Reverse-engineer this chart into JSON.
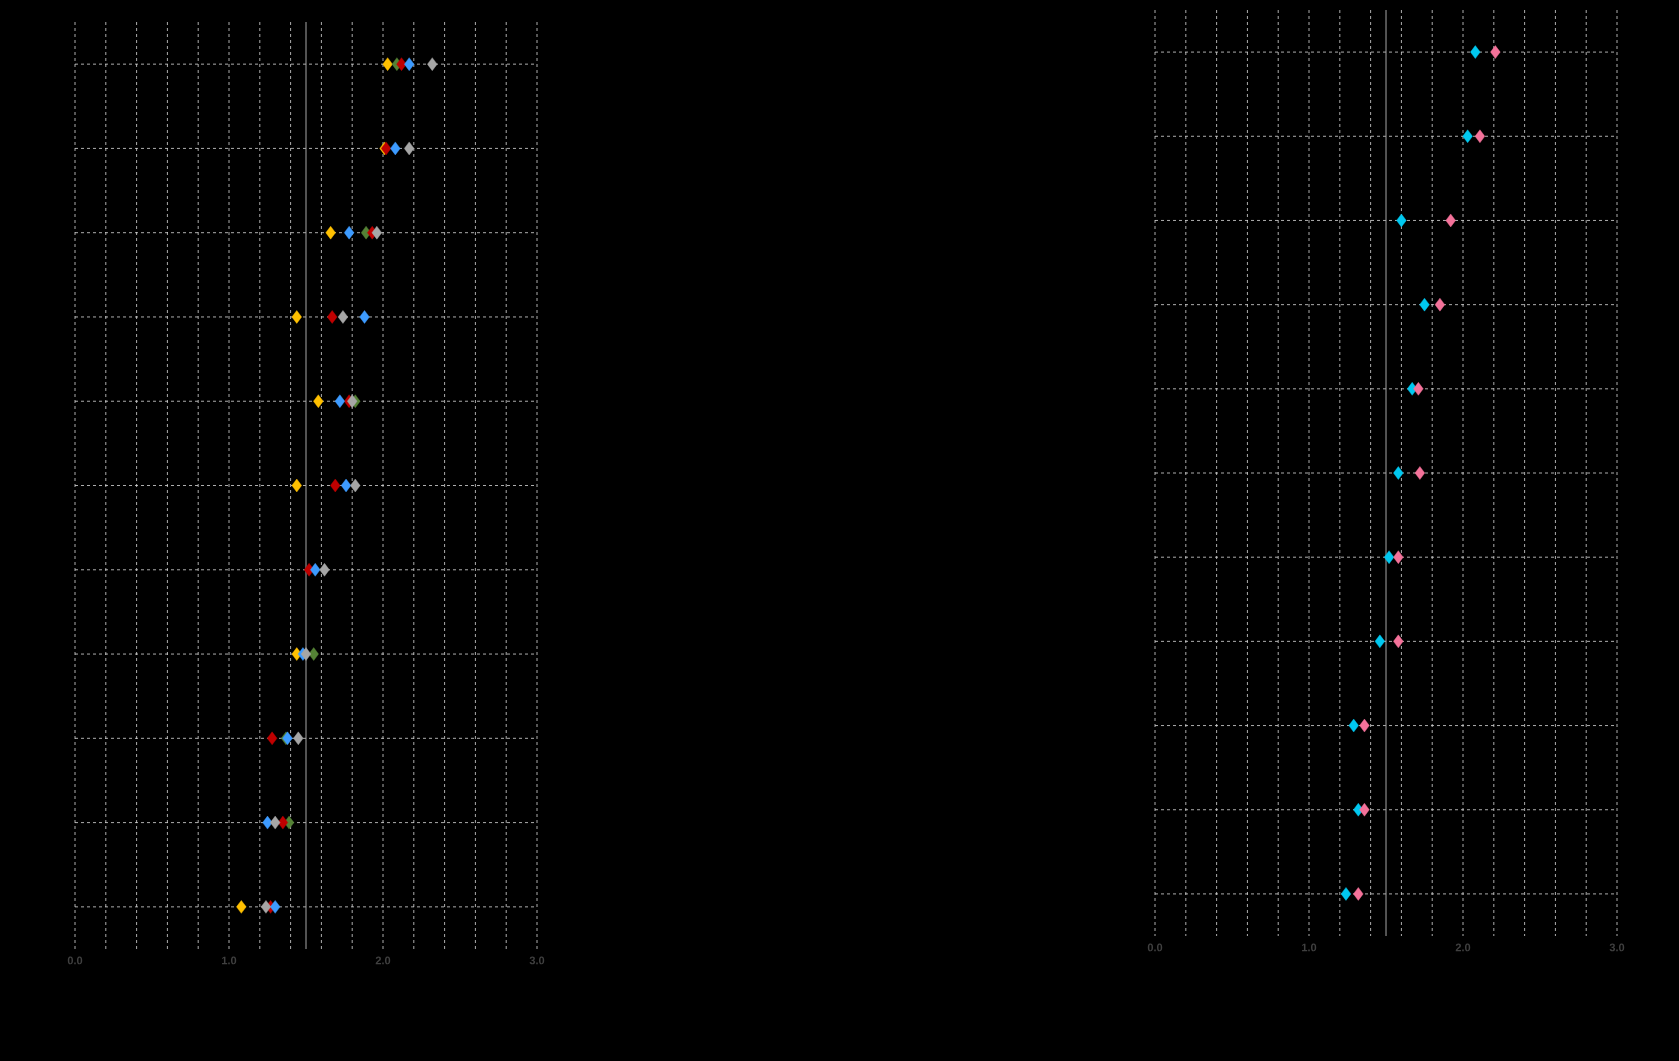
{
  "chart_data": [
    {
      "type": "scatter",
      "orientation": "horizontal",
      "marker": "diamond",
      "grid": true,
      "categories": [
        null,
        null,
        null,
        null,
        null,
        null,
        null,
        null,
        null,
        null,
        null
      ],
      "xlim": [
        0,
        3
      ],
      "xticks": [
        {
          "value": 0,
          "label": "0.0"
        },
        {
          "value": 0.2,
          "label": null
        },
        {
          "value": 0.4,
          "label": null
        },
        {
          "value": 0.6,
          "label": null
        },
        {
          "value": 0.8,
          "label": null
        },
        {
          "value": 1,
          "label": "1.0"
        },
        {
          "value": 1.2,
          "label": null
        },
        {
          "value": 1.4,
          "label": null
        },
        {
          "value": 1.6,
          "label": null
        },
        {
          "value": 1.8,
          "label": null
        },
        {
          "value": 2,
          "label": "2.0"
        },
        {
          "value": 2.2,
          "label": null
        },
        {
          "value": 2.4,
          "label": null
        },
        {
          "value": 2.6,
          "label": null
        },
        {
          "value": 2.8,
          "label": null
        },
        {
          "value": 3,
          "label": "3.0"
        }
      ],
      "ref_lines": [
        {
          "axis": "x",
          "value": 1.5,
          "color": "#a6a6a6"
        }
      ],
      "series": [
        {
          "color": "#ffc000",
          "values": [
            2.03,
            2.01,
            1.66,
            1.44,
            1.58,
            1.44,
            null,
            1.44,
            null,
            null,
            1.08
          ]
        },
        {
          "color": "#548235",
          "values": [
            2.09,
            null,
            1.89,
            null,
            1.82,
            null,
            null,
            1.55,
            1.37,
            1.39,
            null
          ]
        },
        {
          "color": "#c00000",
          "values": [
            2.12,
            2.02,
            1.93,
            1.67,
            1.78,
            1.69,
            1.52,
            null,
            1.28,
            1.35,
            1.27
          ]
        },
        {
          "color": "#3d9bff",
          "values": [
            2.17,
            2.08,
            1.78,
            1.88,
            1.72,
            1.76,
            1.56,
            1.48,
            1.38,
            1.25,
            1.3
          ]
        },
        {
          "color": "#a6a6a6",
          "values": [
            2.32,
            2.17,
            1.96,
            1.74,
            1.8,
            1.82,
            1.62,
            1.5,
            1.45,
            1.3,
            1.24
          ]
        }
      ]
    },
    {
      "type": "scatter",
      "orientation": "horizontal",
      "marker": "diamond",
      "grid": true,
      "categories": [
        null,
        null,
        null,
        null,
        null,
        null,
        null,
        null,
        null,
        null,
        null
      ],
      "xlim": [
        0,
        3
      ],
      "xticks": [
        {
          "value": 0,
          "label": "0.0"
        },
        {
          "value": 0.2,
          "label": null
        },
        {
          "value": 0.4,
          "label": null
        },
        {
          "value": 0.6,
          "label": null
        },
        {
          "value": 0.8,
          "label": null
        },
        {
          "value": 1,
          "label": "1.0"
        },
        {
          "value": 1.2,
          "label": null
        },
        {
          "value": 1.4,
          "label": null
        },
        {
          "value": 1.6,
          "label": null
        },
        {
          "value": 1.8,
          "label": null
        },
        {
          "value": 2,
          "label": "2.0"
        },
        {
          "value": 2.2,
          "label": null
        },
        {
          "value": 2.4,
          "label": null
        },
        {
          "value": 2.6,
          "label": null
        },
        {
          "value": 2.8,
          "label": null
        },
        {
          "value": 3,
          "label": "3.0"
        }
      ],
      "ref_lines": [
        {
          "axis": "x",
          "value": 1.5,
          "color": "#a6a6a6"
        }
      ],
      "series": [
        {
          "color": "#00c8f0",
          "values": [
            2.08,
            2.03,
            1.6,
            1.75,
            1.67,
            1.58,
            1.52,
            1.46,
            1.29,
            1.32,
            1.24
          ]
        },
        {
          "color": "#f4729a",
          "values": [
            2.21,
            2.11,
            1.92,
            1.85,
            1.71,
            1.72,
            1.58,
            1.58,
            1.36,
            1.36,
            1.32
          ]
        }
      ]
    }
  ]
}
